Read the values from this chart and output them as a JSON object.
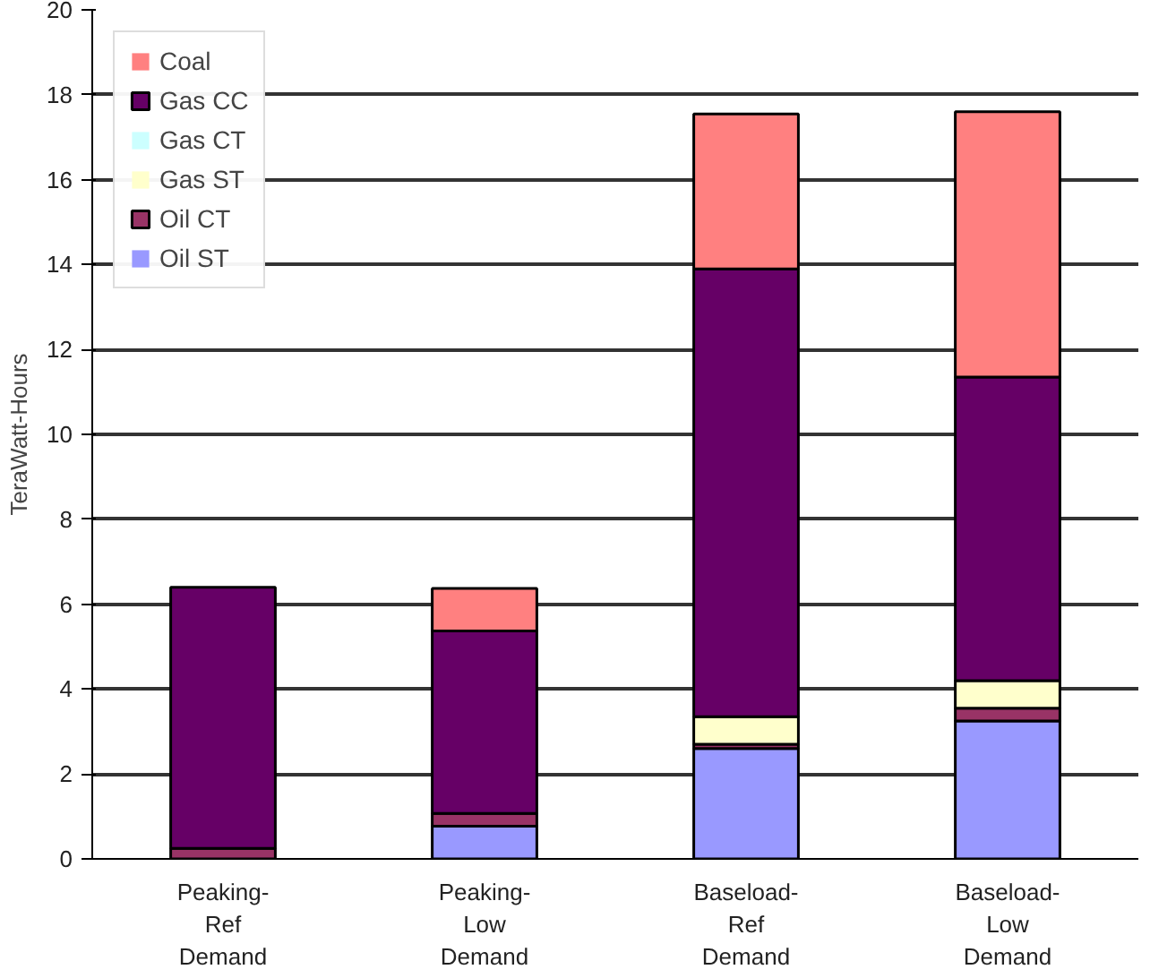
{
  "chart_data": {
    "type": "bar",
    "stacked": true,
    "ylabel": "TeraWatt-Hours",
    "categories": [
      "Peaking-\nRef\nDemand",
      "Peaking-\nLow\nDemand",
      "Baseload-\nRef\nDemand",
      "Baseload-\nLow\nDemand"
    ],
    "series": [
      {
        "name": "Oil ST",
        "color": "#9999ff",
        "values": [
          0,
          0.77,
          2.6,
          3.25
        ]
      },
      {
        "name": "Oil CT",
        "color": "#993366",
        "values": [
          0.25,
          0.3,
          0.1,
          0.3
        ]
      },
      {
        "name": "Gas ST",
        "color": "#ffffcc",
        "values": [
          0,
          0,
          0.65,
          0.65
        ]
      },
      {
        "name": "Gas CT",
        "color": "#ccffff",
        "values": [
          0,
          0,
          0,
          0
        ]
      },
      {
        "name": "Gas CC",
        "color": "#660066",
        "values": [
          6.15,
          4.3,
          10.55,
          7.15
        ]
      },
      {
        "name": "Coal",
        "color": "#ff8080",
        "values": [
          0,
          1.0,
          3.65,
          6.25
        ]
      }
    ],
    "ylim": [
      0,
      20
    ],
    "yticks": [
      0,
      2,
      4,
      6,
      8,
      10,
      12,
      14,
      16,
      18,
      20
    ],
    "grid": "y",
    "legend": "top left"
  }
}
